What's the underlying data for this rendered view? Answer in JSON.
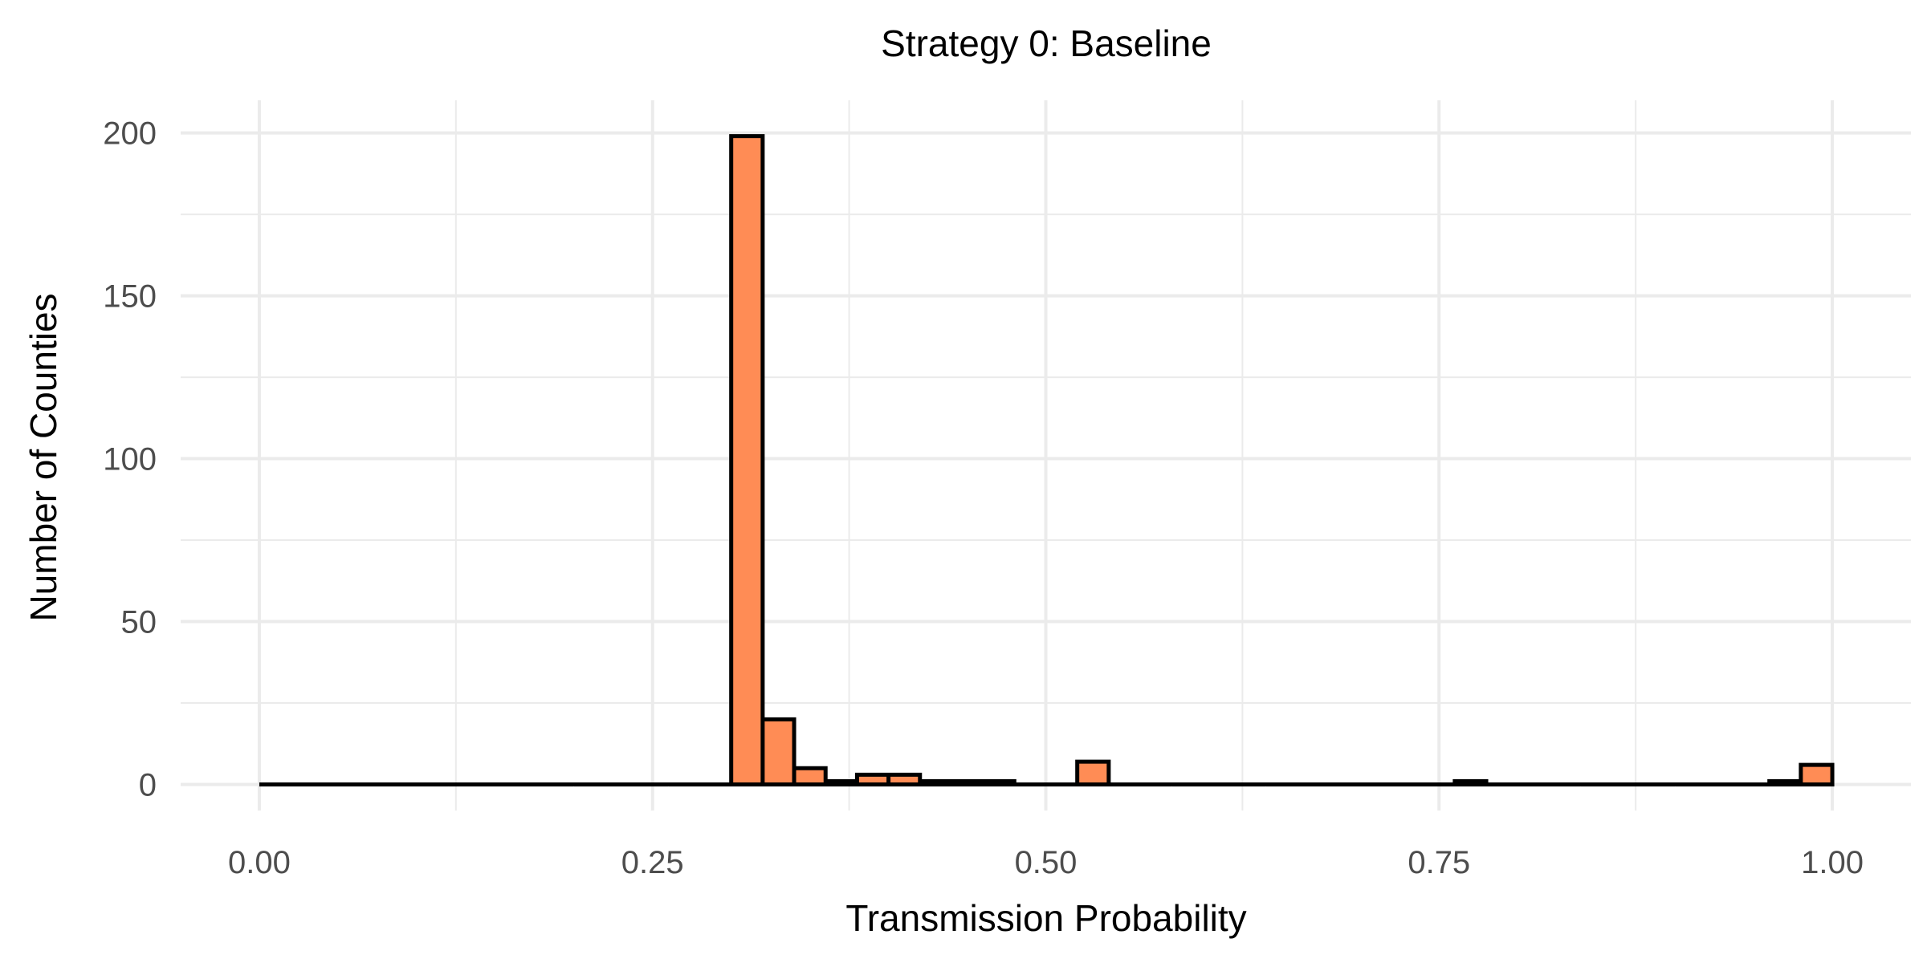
{
  "chart_data": {
    "type": "bar",
    "subtype": "histogram",
    "title": "Strategy 0: Baseline",
    "xlabel": "Transmission Probability",
    "ylabel": "Number of Counties",
    "xlim": [
      -0.05,
      1.05
    ],
    "ylim": [
      -8,
      210
    ],
    "x_ticks": [
      "0.00",
      "0.25",
      "0.50",
      "0.75",
      "1.00"
    ],
    "y_ticks": [
      "0",
      "50",
      "100",
      "150",
      "200"
    ],
    "grid": true,
    "bin_width": 0.02,
    "bin_start": 0.0,
    "counts": [
      0,
      0,
      0,
      0,
      0,
      0,
      0,
      0,
      0,
      0,
      0,
      0,
      0,
      0,
      0,
      199,
      20,
      5,
      1,
      3,
      3,
      1,
      1,
      1,
      0,
      0,
      7,
      0,
      0,
      0,
      0,
      0,
      0,
      0,
      0,
      0,
      0,
      0,
      1,
      0,
      0,
      0,
      0,
      0,
      0,
      0,
      0,
      0,
      1,
      6
    ],
    "colors": {
      "fill": "#FF8C55",
      "stroke": "#000000",
      "grid": "#EBEBEB"
    }
  }
}
